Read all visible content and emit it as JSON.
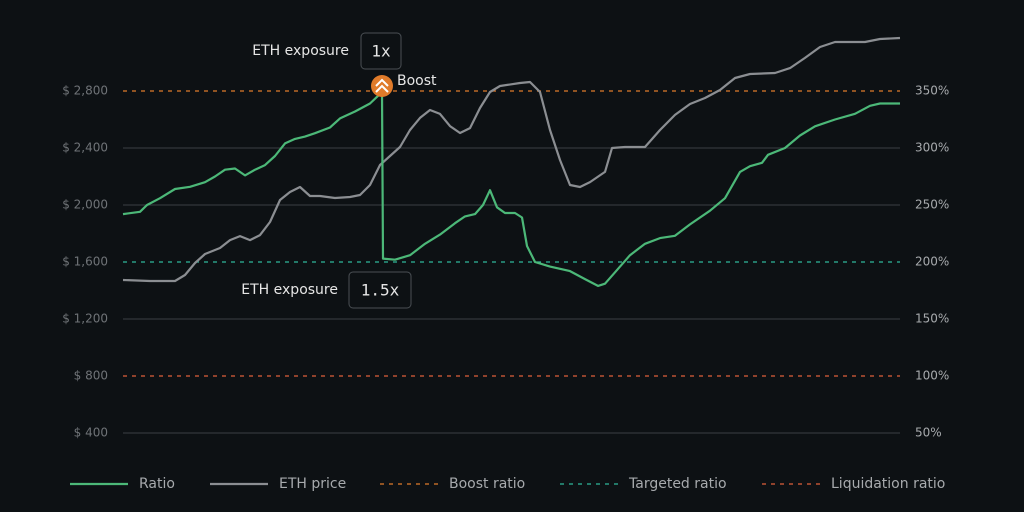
{
  "chart_data": {
    "type": "line",
    "xlim": [
      0,
      777
    ],
    "ylim": [
      400,
      3200
    ],
    "yticks": [
      {
        "value": 400,
        "label": "$ 400"
      },
      {
        "value": 800,
        "label": "$ 800"
      },
      {
        "value": 1200,
        "label": "$ 1,200"
      },
      {
        "value": 1600,
        "label": "$ 1,600"
      },
      {
        "value": 2000,
        "label": "$ 2,000"
      },
      {
        "value": 2400,
        "label": "$ 2,400"
      },
      {
        "value": 2800,
        "label": "$ 2,800"
      }
    ],
    "y2lim": [
      50,
      400
    ],
    "y2ticks": [
      {
        "value": 50,
        "label": "50%"
      },
      {
        "value": 100,
        "label": "100%"
      },
      {
        "value": 150,
        "label": "150%"
      },
      {
        "value": 200,
        "label": "200%"
      },
      {
        "value": 250,
        "label": "250%"
      },
      {
        "value": 300,
        "label": "300%"
      },
      {
        "value": 350,
        "label": "350%"
      }
    ],
    "grid": true,
    "series": [
      {
        "name": "Ratio",
        "color": "#4cb878",
        "axis": "y2",
        "x": [
          0,
          17,
          24,
          37,
          52,
          67,
          82,
          92,
          102,
          112,
          122,
          132,
          142,
          152,
          162,
          172,
          182,
          192,
          207,
          217,
          232,
          247,
          259,
          260,
          272,
          287,
          302,
          317,
          332,
          342,
          352,
          360,
          367,
          374,
          382,
          392,
          399,
          404,
          412,
          427,
          447,
          462,
          475,
          482,
          492,
          507,
          522,
          537,
          552,
          567,
          587,
          602,
          617,
          627,
          639,
          645,
          662,
          677,
          692,
          712,
          732,
          747,
          757,
          777
        ],
        "values": [
          242,
          244,
          250,
          256,
          264,
          266,
          270,
          275,
          281,
          282,
          276,
          281,
          285,
          293,
          304,
          308,
          310,
          313,
          318,
          326,
          332,
          339,
          349,
          203,
          202,
          206,
          216,
          224,
          234,
          240,
          242,
          250,
          263,
          248,
          243,
          243,
          239,
          214,
          200,
          196,
          192,
          185,
          179,
          181,
          191,
          206,
          216,
          221,
          223,
          233,
          245,
          256,
          279,
          284,
          287,
          294,
          300,
          311,
          319,
          325,
          330,
          337,
          339,
          339
        ]
      },
      {
        "name": "ETH price",
        "color": "#8b8e92",
        "axis": "y",
        "x": [
          0,
          27,
          52,
          62,
          72,
          82,
          97,
          107,
          117,
          127,
          137,
          147,
          157,
          167,
          177,
          187,
          197,
          212,
          227,
          237,
          247,
          257,
          267,
          277,
          287,
          297,
          307,
          317,
          327,
          337,
          347,
          357,
          367,
          377,
          397,
          407,
          417,
          427,
          437,
          447,
          457,
          467,
          482,
          489,
          502,
          522,
          537,
          552,
          567,
          582,
          597,
          612,
          627,
          652,
          667,
          682,
          697,
          712,
          742,
          757,
          777
        ],
        "values": [
          1474,
          1467,
          1467,
          1509,
          1593,
          1656,
          1698,
          1754,
          1782,
          1754,
          1789,
          1881,
          2035,
          2091,
          2126,
          2063,
          2063,
          2049,
          2056,
          2070,
          2140,
          2281,
          2344,
          2407,
          2526,
          2611,
          2667,
          2639,
          2554,
          2505,
          2540,
          2681,
          2793,
          2835,
          2856,
          2863,
          2793,
          2526,
          2316,
          2140,
          2126,
          2161,
          2232,
          2400,
          2407,
          2407,
          2526,
          2632,
          2709,
          2751,
          2807,
          2891,
          2919,
          2926,
          2961,
          3032,
          3109,
          3144,
          3144,
          3165,
          3172
        ]
      }
    ],
    "reference_lines": [
      {
        "name": "Boost ratio",
        "value": 350,
        "axis": "y2",
        "color": "#e07b2a"
      },
      {
        "name": "Targeted ratio",
        "value": 200,
        "axis": "y2",
        "color": "#2fb89a"
      },
      {
        "name": "Liquidation ratio",
        "value": 100,
        "axis": "y2",
        "color": "#e0603a"
      }
    ],
    "annotations": [
      {
        "label": "ETH exposure",
        "exposure": "1x"
      },
      {
        "label": "Boost"
      },
      {
        "label": "ETH exposure",
        "exposure": "1.5x"
      }
    ]
  }
}
